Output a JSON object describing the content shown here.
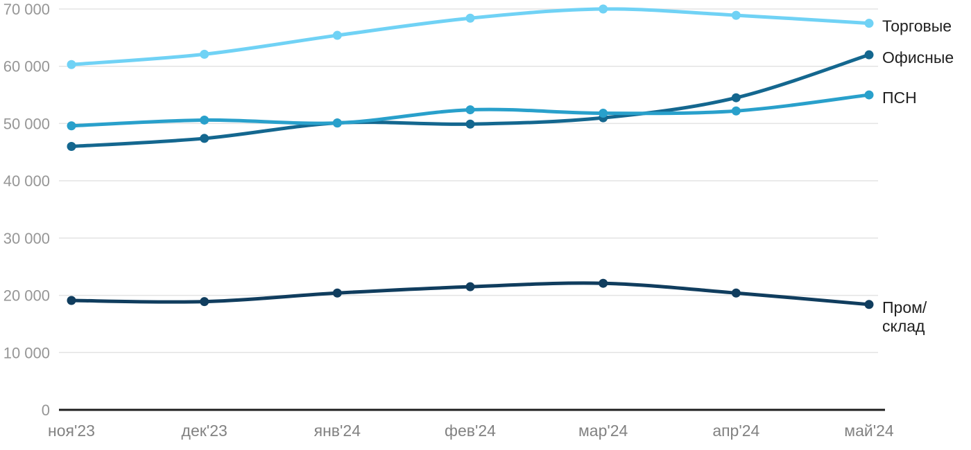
{
  "chart_data": {
    "type": "line",
    "title": "",
    "x_categories": [
      "ноя'23",
      "дек'23",
      "янв'24",
      "фев'24",
      "мар'24",
      "апр'24",
      "май'24"
    ],
    "series": [
      {
        "name": "Торговые",
        "label_lines": [
          "Торговые"
        ],
        "color": "#70D2F5",
        "values": [
          60300,
          62100,
          65400,
          68400,
          70000,
          68900,
          67500
        ]
      },
      {
        "name": "Офисные",
        "label_lines": [
          "Офисные"
        ],
        "color": "#14678F",
        "values": [
          46000,
          47400,
          50100,
          49900,
          51000,
          54500,
          62000
        ]
      },
      {
        "name": "ПСН",
        "label_lines": [
          "ПСН"
        ],
        "color": "#29A0CB",
        "values": [
          49600,
          50600,
          50100,
          52400,
          51800,
          52200,
          55000
        ]
      },
      {
        "name": "Пром/склад",
        "label_lines": [
          "Пром/",
          "склад"
        ],
        "color": "#103D5E",
        "values": [
          19100,
          18900,
          20400,
          21500,
          22100,
          20400,
          18400
        ]
      }
    ],
    "ylim": [
      0,
      70000
    ],
    "ytick_step": 10000,
    "ytick_labels": [
      "0",
      "10 000",
      "20 000",
      "30 000",
      "40 000",
      "50 000",
      "60 000",
      "70 000"
    ],
    "grid": "horizontal",
    "legend_position": "right-of-line-ends",
    "colors": {
      "y_tick_label": "#969696",
      "x_tick_label": "#828282",
      "gridline": "#E3E3E3",
      "axis_line": "#1E1E1E",
      "series_label_text": "#1F1F1F",
      "background": "#FFFFFF"
    }
  }
}
